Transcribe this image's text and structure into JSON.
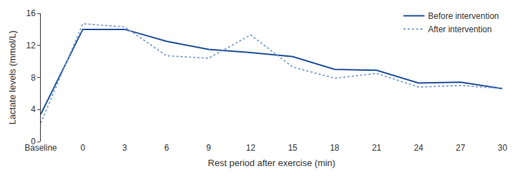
{
  "chart_data": {
    "type": "line",
    "x_label": "Rest period after exercise (min)",
    "y_label": "Lactate levels (mmol/L)",
    "categories": [
      "Baseline",
      "0",
      "3",
      "6",
      "9",
      "12",
      "15",
      "18",
      "21",
      "24",
      "27",
      "30"
    ],
    "series": [
      {
        "name": "Before intervention",
        "color": "#1f4f9a",
        "line_style": "solid",
        "values": [
          3.4,
          14.0,
          14.0,
          12.5,
          11.5,
          11.1,
          10.6,
          9.0,
          8.9,
          7.3,
          7.4,
          6.6
        ]
      },
      {
        "name": "After intervention",
        "color": "#7c9fd2",
        "line_style": "dot",
        "values": [
          2.3,
          14.7,
          14.3,
          10.7,
          10.4,
          13.3,
          9.3,
          7.9,
          8.5,
          6.8,
          7.0,
          6.6
        ]
      }
    ],
    "ylim": [
      0,
      16
    ],
    "yticks": [
      0,
      4,
      8,
      12,
      16
    ],
    "grid": false,
    "legend": "top-right"
  }
}
